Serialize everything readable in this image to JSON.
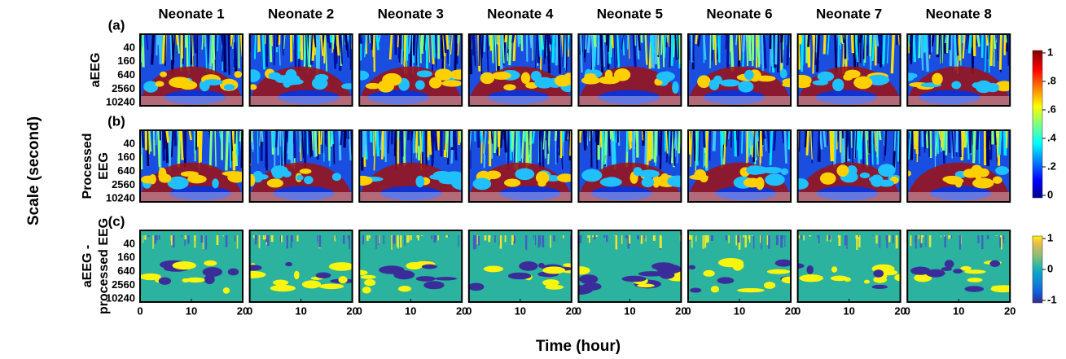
{
  "chart_data": {
    "type": "heatmap",
    "columns": [
      "Neonate 1",
      "Neonate 2",
      "Neonate 3",
      "Neonate 4",
      "Neonate 5",
      "Neonate 6",
      "Neonate 7",
      "Neonate 8"
    ],
    "rows": [
      {
        "panel": "(a)",
        "label": [
          "aEEG"
        ],
        "colormap": "jet"
      },
      {
        "panel": "(b)",
        "label": [
          "Processed",
          "EEG"
        ],
        "colormap": "jet"
      },
      {
        "panel": "(c)",
        "label": [
          "aEEG -",
          "processed EEG"
        ],
        "colormap": "parula"
      }
    ],
    "ylabel": "Scale (second)",
    "xlabel": "Time (hour)",
    "xlim": [
      0,
      20
    ],
    "xticks": [
      0,
      10,
      20
    ],
    "ylim": [
      10,
      14000
    ],
    "ylog": true,
    "yticks": [
      40,
      160,
      640,
      2560,
      10240
    ],
    "colorbars": [
      {
        "colormap": "jet",
        "lim": [
          0,
          1
        ],
        "ticks": [
          0,
          {
            "value": 0.2,
            "label": ".2"
          },
          {
            "value": 0.4,
            "label": ".4"
          },
          {
            "value": 0.6,
            "label": ".6"
          },
          {
            "value": 0.8,
            "label": ".8"
          },
          1
        ]
      },
      {
        "colormap": "parula",
        "lim": [
          -1,
          1
        ],
        "ticks": [
          -1,
          0,
          1
        ]
      }
    ]
  }
}
